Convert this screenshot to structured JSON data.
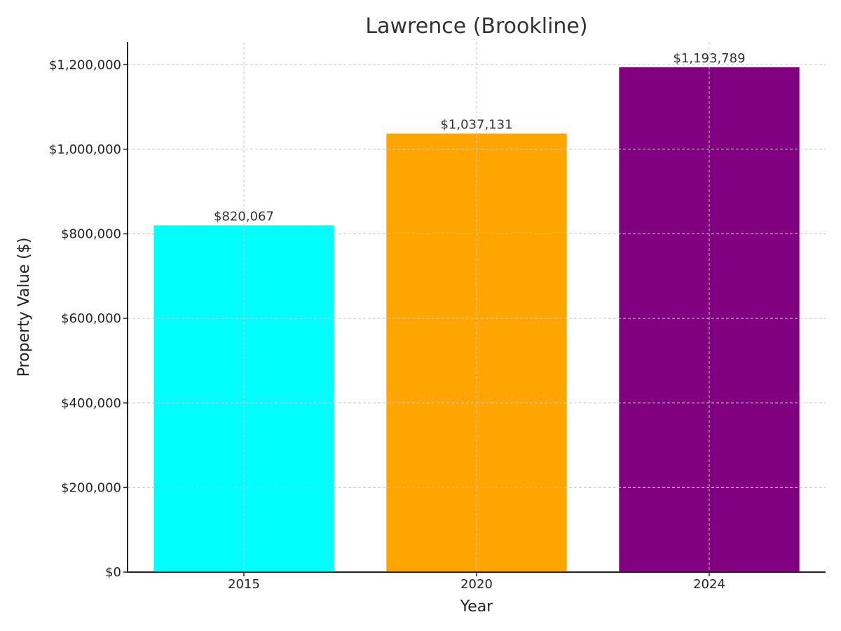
{
  "chart_data": {
    "type": "bar",
    "title": "Lawrence (Brookline)",
    "xlabel": "Year",
    "ylabel": "Property Value ($)",
    "categories": [
      "2015",
      "2020",
      "2024"
    ],
    "values": [
      820067,
      1037131,
      1193789
    ],
    "value_labels": [
      "$820,067",
      "$1,037,131",
      "$1,193,789"
    ],
    "colors": [
      "#00ffff",
      "#ffa500",
      "#800080"
    ],
    "ylim": [
      0,
      1253478
    ],
    "yticks": [
      0,
      200000,
      400000,
      600000,
      800000,
      1000000,
      1200000
    ],
    "ytick_labels": [
      "$0",
      "$200,000",
      "$400,000",
      "$600,000",
      "$800,000",
      "$1,000,000",
      "$1,200,000"
    ],
    "grid": true
  }
}
